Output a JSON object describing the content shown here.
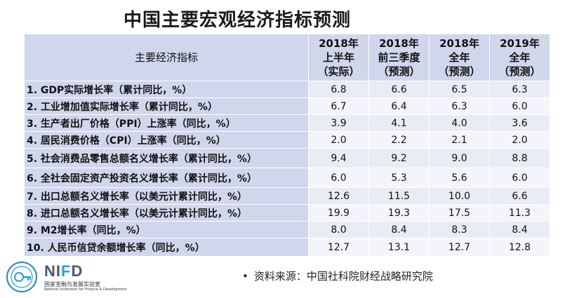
{
  "title": "中国主要宏观经济指标预测",
  "table": {
    "indicator_header": "主要经济指标",
    "columns": [
      {
        "l1": "2018年",
        "l2": "上半年",
        "l3": "（实际）"
      },
      {
        "l1": "2018年",
        "l2": "前三季度",
        "l3": "（预测）"
      },
      {
        "l1": "2018年",
        "l2": "全年",
        "l3": "（预测）"
      },
      {
        "l1": "2019年",
        "l2": "全年",
        "l3": "（预测）"
      }
    ],
    "rows": [
      {
        "label": "1. GDP实际增长率（累计同比，%）",
        "values": [
          "6.8",
          "6.6",
          "6.5",
          "6.3"
        ]
      },
      {
        "label": "2. 工业增加值实际增长率（累计同比，%）",
        "values": [
          "6.7",
          "6.4",
          "6.3",
          "6.0"
        ]
      },
      {
        "label": "3. 生产者出厂价格（PPI）上涨率（同比，%）",
        "values": [
          "3.9",
          "4.1",
          "4.0",
          "3.6"
        ]
      },
      {
        "label": "4. 居民消费价格（CPI）上涨率（同比，%）",
        "values": [
          "2.0",
          "2.2",
          "2.1",
          "2.0"
        ]
      },
      {
        "label": "5. 社会消费品零售总额名义增长率（累计同比，%）",
        "values": [
          "9.4",
          "9.2",
          "9.0",
          "8.8"
        ]
      },
      {
        "label": "6. 全社会固定资产投资名义增长率（累计同比，%）",
        "values": [
          "6.0",
          "5.3",
          "5.6",
          "6.0"
        ]
      },
      {
        "label": "7. 出口总额名义增长率（以美元计累计同比，%）",
        "values": [
          "12.6",
          "11.5",
          "10.0",
          "6.6"
        ]
      },
      {
        "label": "8. 进口总额名义增长率（以美元计累计同比，%）",
        "values": [
          "19.9",
          "19.3",
          "17.5",
          "11.3"
        ]
      },
      {
        "label": "9. M2增长率（同比，%）",
        "values": [
          "8.0",
          "8.4",
          "8.3",
          "8.4"
        ]
      },
      {
        "label": "10. 人民币信贷余额增长率（同比，%）",
        "values": [
          "12.7",
          "13.1",
          "12.7",
          "12.8"
        ]
      }
    ]
  },
  "source": {
    "bullet": "•",
    "text": "资料来源：中国社科院财经战略研究院"
  },
  "logo": {
    "brand_left": "NI",
    "brand_accent": "F",
    "brand_right": "D",
    "cn_name": "国家金融与发展实验室",
    "en_name": "National Institution for Finance & Development",
    "seal_icon": "seal-emblem-icon"
  },
  "colors": {
    "header_bg": "#d0d6ec",
    "row_band_a": "#e9ebf5",
    "row_band_b": "#f4f5fa",
    "brand_accent": "#2a9fd8"
  }
}
